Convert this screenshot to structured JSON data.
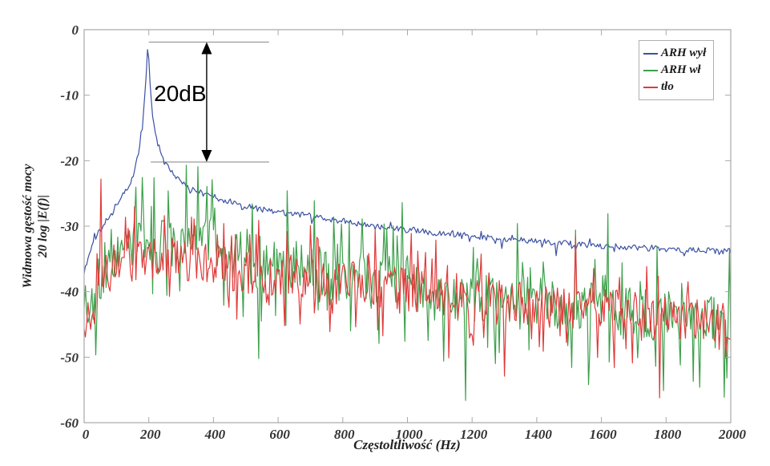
{
  "chart_data": {
    "type": "line",
    "title": "",
    "xlabel": "Częstoltliwość (Hz)",
    "ylabel_line1": "Widmowa gęstość mocy",
    "ylabel_line2": "20 log |E(f)|",
    "xlim": [
      0,
      2000
    ],
    "ylim": [
      -60,
      0
    ],
    "xticks": [
      0,
      200,
      400,
      600,
      800,
      1000,
      1200,
      1400,
      1600,
      1800,
      2000
    ],
    "yticks": [
      0,
      -10,
      -20,
      -30,
      -40,
      -50,
      -60
    ],
    "grid": false,
    "legend_position": "top-right",
    "axis_color": "#a8a8a8",
    "tick_label_color": "#333333",
    "annotation": {
      "label": "20dB",
      "ref_top_db": -1.9,
      "ref_bottom_db": -20.2,
      "line_x_start_hz": 200,
      "line2_x_start_hz": 206,
      "line_x_end_hz": 572,
      "arrow_x_hz": 379,
      "label_center_hz": 297,
      "label_center_db": -9.8,
      "line_color": "#9a9a9a",
      "arrow_color": "#000000"
    },
    "series": [
      {
        "id": "arh-wyl",
        "label": "ARH wył",
        "color": "#3b51a3",
        "step_hz": 4,
        "seed": 11,
        "noise_db": 0.45,
        "tail_prob": 0.05,
        "tail_up_frac": 0.4,
        "tail_scale": 1.2,
        "trend": [
          [
            0,
            -37
          ],
          [
            12,
            -34.8
          ],
          [
            25,
            -32.6
          ],
          [
            40,
            -31.2
          ],
          [
            60,
            -29.6
          ],
          [
            80,
            -28.2
          ],
          [
            100,
            -26.8
          ],
          [
            120,
            -25.4
          ],
          [
            140,
            -23.8
          ],
          [
            155,
            -21.8
          ],
          [
            168,
            -18.8
          ],
          [
            180,
            -14.5
          ],
          [
            190,
            -8.5
          ],
          [
            197,
            -2.1
          ],
          [
            204,
            -8.5
          ],
          [
            212,
            -13.5
          ],
          [
            222,
            -16.3
          ],
          [
            235,
            -18.5
          ],
          [
            250,
            -20.4
          ],
          [
            265,
            -21.5
          ],
          [
            285,
            -22.6
          ],
          [
            310,
            -23.7
          ],
          [
            340,
            -24.5
          ],
          [
            380,
            -25.2
          ],
          [
            420,
            -25.8
          ],
          [
            470,
            -26.5
          ],
          [
            520,
            -27.1
          ],
          [
            570,
            -27.7
          ],
          [
            620,
            -28.0
          ],
          [
            680,
            -28.3
          ],
          [
            740,
            -28.8
          ],
          [
            800,
            -29.3
          ],
          [
            860,
            -29.8
          ],
          [
            920,
            -30.2
          ],
          [
            1000,
            -30.6
          ],
          [
            1080,
            -31.0
          ],
          [
            1160,
            -31.3
          ],
          [
            1240,
            -31.7
          ],
          [
            1320,
            -32.0
          ],
          [
            1400,
            -32.3
          ],
          [
            1480,
            -32.6
          ],
          [
            1560,
            -32.9
          ],
          [
            1640,
            -33.1
          ],
          [
            1720,
            -33.3
          ],
          [
            1800,
            -33.5
          ],
          [
            1900,
            -33.7
          ],
          [
            2000,
            -33.8
          ]
        ],
        "spikes": [
          [
            705,
            -29.6
          ],
          [
            1293,
            -33.4
          ],
          [
            1460,
            -34.5
          ]
        ]
      },
      {
        "id": "arh-wl",
        "label": "ARH wł",
        "color": "#3da04b",
        "step_hz": 4,
        "seed": 23,
        "noise_db": 4.0,
        "tail_prob": 0.11,
        "tail_up_frac": 0.5,
        "tail_scale": 1.5,
        "trend": [
          [
            0,
            -40.5
          ],
          [
            18,
            -41.8
          ],
          [
            35,
            -40.2
          ],
          [
            50,
            -37.8
          ],
          [
            70,
            -35.2
          ],
          [
            100,
            -33.6
          ],
          [
            140,
            -32.6
          ],
          [
            200,
            -32.2
          ],
          [
            260,
            -32.6
          ],
          [
            320,
            -31.2
          ],
          [
            360,
            -30.8
          ],
          [
            420,
            -33.2
          ],
          [
            480,
            -34.6
          ],
          [
            550,
            -35.4
          ],
          [
            620,
            -36.0
          ],
          [
            700,
            -36.6
          ],
          [
            780,
            -37.4
          ],
          [
            860,
            -38.0
          ],
          [
            950,
            -38.6
          ],
          [
            1050,
            -39.6
          ],
          [
            1150,
            -40.4
          ],
          [
            1250,
            -41.0
          ],
          [
            1350,
            -41.6
          ],
          [
            1450,
            -42.0
          ],
          [
            1550,
            -42.5
          ],
          [
            1650,
            -43.0
          ],
          [
            1750,
            -43.5
          ],
          [
            1850,
            -44.0
          ],
          [
            1950,
            -44.5
          ],
          [
            2000,
            -44.0
          ]
        ],
        "spikes": [
          [
            215,
            -22.6
          ],
          [
            317,
            -20.7
          ],
          [
            350,
            -20.9
          ],
          [
            395,
            -22.9
          ],
          [
            520,
            -26.6
          ],
          [
            540,
            -50.2
          ],
          [
            627,
            -24.6
          ],
          [
            710,
            -26.1
          ],
          [
            770,
            -28.6
          ],
          [
            860,
            -28.9
          ],
          [
            984,
            -26.4
          ],
          [
            1110,
            -50.6
          ],
          [
            1180,
            -56.6
          ],
          [
            1340,
            -29.6
          ],
          [
            1520,
            -30.6
          ],
          [
            1560,
            -54.2
          ],
          [
            1620,
            -28.1
          ],
          [
            1772,
            -33.1
          ],
          [
            1790,
            -55.1
          ],
          [
            1903,
            -54.6
          ],
          [
            1978,
            -56.1
          ],
          [
            1996,
            -33.6
          ]
        ]
      },
      {
        "id": "tlo",
        "label": "tło",
        "color": "#e03a3a",
        "step_hz": 4,
        "seed": 37,
        "noise_db": 3.4,
        "tail_prob": 0.1,
        "tail_up_frac": 0.45,
        "tail_scale": 1.4,
        "trend": [
          [
            0,
            -44
          ],
          [
            28,
            -42.6
          ],
          [
            46,
            -38
          ],
          [
            50,
            -31
          ],
          [
            54,
            -36.5
          ],
          [
            80,
            -37
          ],
          [
            120,
            -36
          ],
          [
            180,
            -34.6
          ],
          [
            240,
            -34.9
          ],
          [
            300,
            -35.3
          ],
          [
            360,
            -35.9
          ],
          [
            420,
            -36.3
          ],
          [
            500,
            -36.9
          ],
          [
            580,
            -37.3
          ],
          [
            660,
            -37.9
          ],
          [
            740,
            -38.3
          ],
          [
            820,
            -38.7
          ],
          [
            900,
            -39.1
          ],
          [
            1000,
            -39.7
          ],
          [
            1100,
            -40.3
          ],
          [
            1200,
            -40.9
          ],
          [
            1300,
            -41.5
          ],
          [
            1400,
            -42.1
          ],
          [
            1500,
            -42.5
          ],
          [
            1600,
            -42.9
          ],
          [
            1700,
            -43.3
          ],
          [
            1800,
            -43.6
          ],
          [
            1900,
            -43.9
          ],
          [
            2000,
            -44.1
          ]
        ],
        "spikes": [
          [
            52,
            -22.8
          ],
          [
            248,
            -28.4
          ],
          [
            330,
            -28.6
          ],
          [
            430,
            -29.6
          ],
          [
            540,
            -29.1
          ],
          [
            620,
            -45.2
          ],
          [
            700,
            -29.9
          ],
          [
            760,
            -46.1
          ],
          [
            900,
            -30.6
          ],
          [
            1010,
            -31.1
          ],
          [
            1127,
            -50.1
          ],
          [
            1205,
            -48.2
          ],
          [
            1300,
            -52.9
          ],
          [
            1420,
            -49.1
          ],
          [
            1520,
            -31.6
          ],
          [
            1640,
            -51.6
          ],
          [
            1780,
            -56.2
          ],
          [
            1860,
            -47.1
          ],
          [
            1950,
            -47.6
          ],
          [
            2000,
            -47.1
          ]
        ]
      }
    ]
  }
}
